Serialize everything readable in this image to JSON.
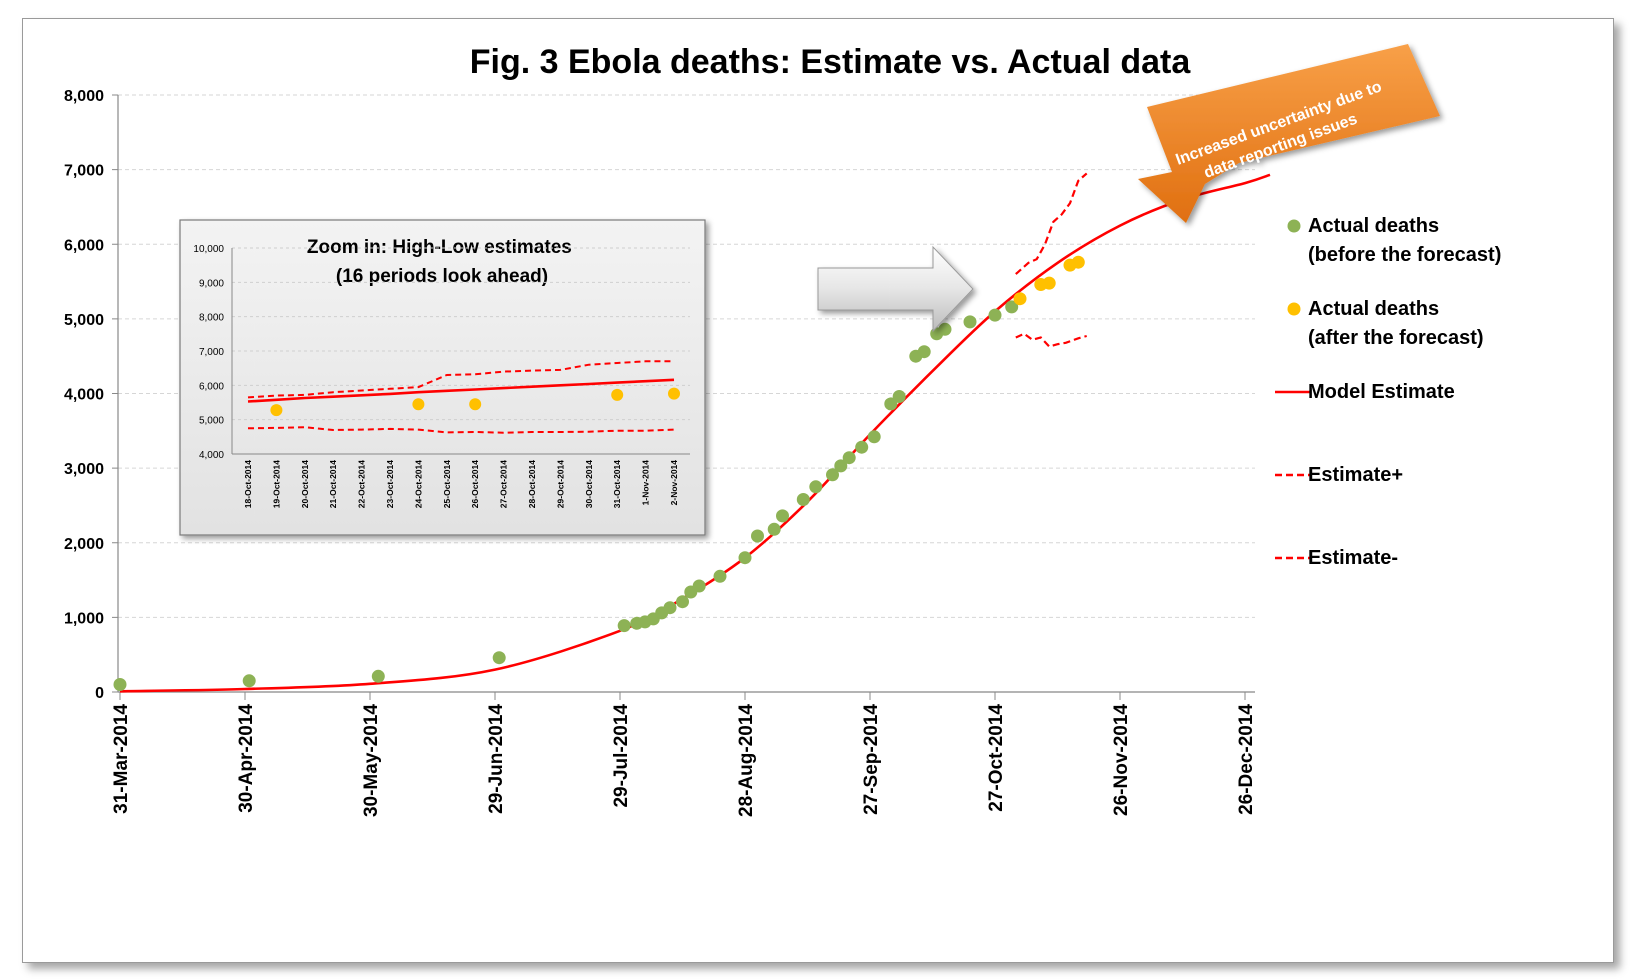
{
  "chart_data": [
    {
      "type": "line",
      "title": "Fig. 3 Ebola deaths: Estimate vs. Actual data",
      "xlabel": "",
      "ylabel": "",
      "x_ticks": [
        "31-Mar-2014",
        "30-Apr-2014",
        "30-May-2014",
        "29-Jun-2014",
        "29-Jul-2014",
        "28-Aug-2014",
        "27-Sep-2014",
        "27-Oct-2014",
        "26-Nov-2014",
        "26-Dec-2014"
      ],
      "ylim": [
        0,
        8000
      ],
      "y_ticks": [
        "0",
        "1,000",
        "2,000",
        "3,000",
        "4,000",
        "5,000",
        "6,000",
        "7,000",
        "8,000"
      ],
      "grid": true,
      "legend_position": "right",
      "series": [
        {
          "name": "Actual deaths\n(before the forecast)",
          "kind": "scatter",
          "color": "#8db255",
          "points": [
            {
              "x": "2014-03-31",
              "y": 100
            },
            {
              "x": "2014-05-01",
              "y": 150
            },
            {
              "x": "2014-06-01",
              "y": 210
            },
            {
              "x": "2014-06-30",
              "y": 460
            },
            {
              "x": "2014-07-30",
              "y": 890
            },
            {
              "x": "2014-08-02",
              "y": 920
            },
            {
              "x": "2014-08-04",
              "y": 940
            },
            {
              "x": "2014-08-06",
              "y": 980
            },
            {
              "x": "2014-08-08",
              "y": 1060
            },
            {
              "x": "2014-08-10",
              "y": 1130
            },
            {
              "x": "2014-08-13",
              "y": 1210
            },
            {
              "x": "2014-08-15",
              "y": 1340
            },
            {
              "x": "2014-08-17",
              "y": 1420
            },
            {
              "x": "2014-08-22",
              "y": 1550
            },
            {
              "x": "2014-08-28",
              "y": 1800
            },
            {
              "x": "2014-08-31",
              "y": 2090
            },
            {
              "x": "2014-09-04",
              "y": 2180
            },
            {
              "x": "2014-09-06",
              "y": 2360
            },
            {
              "x": "2014-09-11",
              "y": 2580
            },
            {
              "x": "2014-09-14",
              "y": 2750
            },
            {
              "x": "2014-09-18",
              "y": 2910
            },
            {
              "x": "2014-09-20",
              "y": 3030
            },
            {
              "x": "2014-09-22",
              "y": 3140
            },
            {
              "x": "2014-09-25",
              "y": 3280
            },
            {
              "x": "2014-09-28",
              "y": 3420
            },
            {
              "x": "2014-10-02",
              "y": 3860
            },
            {
              "x": "2014-10-04",
              "y": 3960
            },
            {
              "x": "2014-10-08",
              "y": 4500
            },
            {
              "x": "2014-10-10",
              "y": 4560
            },
            {
              "x": "2014-10-13",
              "y": 4800
            },
            {
              "x": "2014-10-15",
              "y": 4860
            },
            {
              "x": "2014-10-21",
              "y": 4960
            },
            {
              "x": "2014-10-27",
              "y": 5050
            },
            {
              "x": "2014-10-31",
              "y": 5160
            }
          ]
        },
        {
          "name": "Actual deaths\n(after the forecast)",
          "kind": "scatter",
          "color": "#ffc000",
          "points": [
            {
              "x": "2014-11-02",
              "y": 5270
            },
            {
              "x": "2014-11-07",
              "y": 5460
            },
            {
              "x": "2014-11-09",
              "y": 5480
            },
            {
              "x": "2014-11-14",
              "y": 5720
            },
            {
              "x": "2014-11-16",
              "y": 5760
            }
          ]
        },
        {
          "name": "Model Estimate",
          "kind": "line",
          "style": "solid",
          "color": "#ff0000",
          "points": [
            {
              "x": "2014-03-31",
              "y": 10
            },
            {
              "x": "2014-04-30",
              "y": 40
            },
            {
              "x": "2014-05-30",
              "y": 110
            },
            {
              "x": "2014-06-29",
              "y": 300
            },
            {
              "x": "2014-07-29",
              "y": 820
            },
            {
              "x": "2014-08-13",
              "y": 1250
            },
            {
              "x": "2014-08-28",
              "y": 1800
            },
            {
              "x": "2014-09-12",
              "y": 2550
            },
            {
              "x": "2014-09-27",
              "y": 3450
            },
            {
              "x": "2014-10-12",
              "y": 4300
            },
            {
              "x": "2014-10-27",
              "y": 5100
            },
            {
              "x": "2014-11-11",
              "y": 5750
            },
            {
              "x": "2014-11-26",
              "y": 6250
            },
            {
              "x": "2014-12-11",
              "y": 6600
            },
            {
              "x": "2014-12-26",
              "y": 6820
            },
            {
              "x": "2015-01-01",
              "y": 6930
            }
          ]
        },
        {
          "name": "Estimate+",
          "kind": "line",
          "style": "dashed",
          "color": "#ff0000",
          "points": [
            {
              "x": "2014-11-01",
              "y": 5600
            },
            {
              "x": "2014-11-04",
              "y": 5750
            },
            {
              "x": "2014-11-06",
              "y": 5800
            },
            {
              "x": "2014-11-08",
              "y": 6000
            },
            {
              "x": "2014-11-10",
              "y": 6300
            },
            {
              "x": "2014-11-12",
              "y": 6400
            },
            {
              "x": "2014-11-14",
              "y": 6550
            },
            {
              "x": "2014-11-16",
              "y": 6850
            },
            {
              "x": "2014-11-18",
              "y": 6950
            }
          ]
        },
        {
          "name": "Estimate-",
          "kind": "line",
          "style": "dashed",
          "color": "#ff0000",
          "points": [
            {
              "x": "2014-11-01",
              "y": 4750
            },
            {
              "x": "2014-11-03",
              "y": 4800
            },
            {
              "x": "2014-11-05",
              "y": 4720
            },
            {
              "x": "2014-11-07",
              "y": 4750
            },
            {
              "x": "2014-11-09",
              "y": 4630
            },
            {
              "x": "2014-11-11",
              "y": 4660
            },
            {
              "x": "2014-11-13",
              "y": 4680
            },
            {
              "x": "2014-11-16",
              "y": 4740
            },
            {
              "x": "2014-11-18",
              "y": 4770
            }
          ]
        }
      ],
      "annotation": "Increased uncertainty due to data reporting issues",
      "annotation_color": "#f07f1f"
    },
    {
      "type": "line",
      "title": "Zoom in: High-Low estimates\n(16 periods look ahead)",
      "ylim": [
        4000,
        10000
      ],
      "y_ticks": [
        "4,000",
        "5,000",
        "6,000",
        "7,000",
        "8,000",
        "9,000",
        "10,000"
      ],
      "categories": [
        "18-Oct-2014",
        "19-Oct-2014",
        "20-Oct-2014",
        "21-Oct-2014",
        "22-Oct-2014",
        "23-Oct-2014",
        "24-Oct-2014",
        "25-Oct-2014",
        "26-Oct-2014",
        "27-Oct-2014",
        "28-Oct-2014",
        "29-Oct-2014",
        "30-Oct-2014",
        "31-Oct-2014",
        "1-Nov-2014",
        "2-Nov-2014"
      ],
      "series": [
        {
          "name": "Model Estimate",
          "style": "solid",
          "color": "#ff0000",
          "values": [
            5530,
            5580,
            5630,
            5670,
            5710,
            5750,
            5800,
            5840,
            5880,
            5920,
            5960,
            6000,
            6040,
            6080,
            6120,
            6160
          ]
        },
        {
          "name": "Estimate+",
          "style": "dashed",
          "color": "#ff0000",
          "values": [
            5650,
            5700,
            5720,
            5800,
            5850,
            5900,
            5950,
            6300,
            6320,
            6400,
            6430,
            6450,
            6600,
            6650,
            6700,
            6700
          ]
        },
        {
          "name": "Estimate-",
          "style": "dashed",
          "color": "#ff0000",
          "values": [
            4750,
            4760,
            4780,
            4700,
            4710,
            4730,
            4710,
            4630,
            4640,
            4620,
            4640,
            4640,
            4650,
            4680,
            4680,
            4710
          ]
        },
        {
          "name": "Actual deaths\n(after the forecast)",
          "kind": "scatter",
          "color": "#ffc000",
          "points": [
            {
              "i": 1,
              "y": 5280
            },
            {
              "i": 6,
              "y": 5450
            },
            {
              "i": 8,
              "y": 5450
            },
            {
              "i": 13,
              "y": 5720
            },
            {
              "i": 15,
              "y": 5760
            }
          ]
        }
      ]
    }
  ]
}
